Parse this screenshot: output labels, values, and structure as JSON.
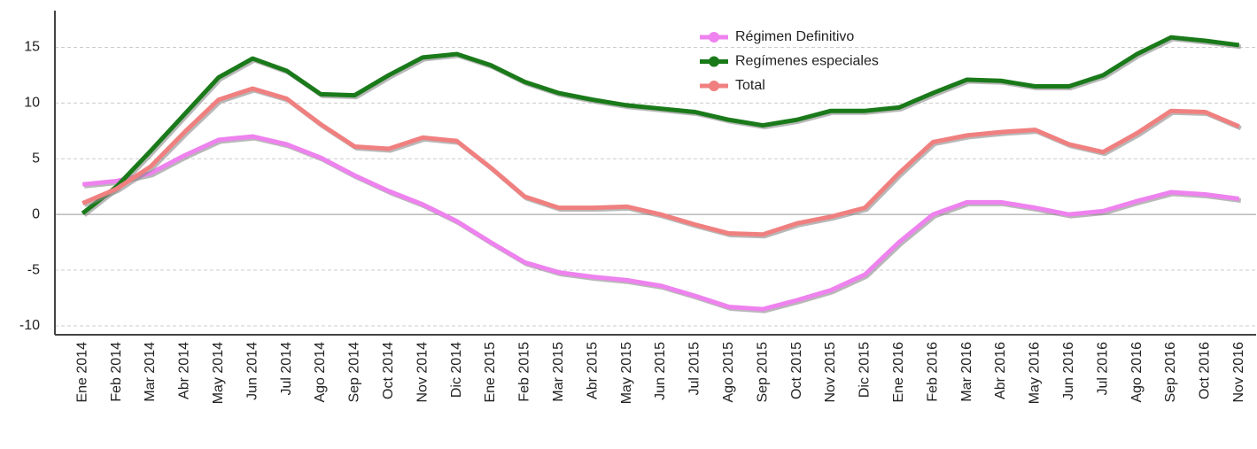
{
  "chart_data": {
    "type": "line",
    "categories": [
      "Ene 2014",
      "Feb 2014",
      "Mar 2014",
      "Abr 2014",
      "May 2014",
      "Jun 2014",
      "Jul 2014",
      "Ago 2014",
      "Sep 2014",
      "Oct 2014",
      "Nov 2014",
      "Dic 2014",
      "Ene 2015",
      "Feb 2015",
      "Mar 2015",
      "Abr 2015",
      "May 2015",
      "Jun 2015",
      "Jul 2015",
      "Ago 2015",
      "Sep 2015",
      "Oct 2015",
      "Nov 2015",
      "Dic 2015",
      "Ene 2016",
      "Feb 2016",
      "Mar 2016",
      "Abr 2016",
      "May 2016",
      "Jun 2016",
      "Jul 2016",
      "Ago 2016",
      "Sep 2016",
      "Oct 2016",
      "Nov 2016"
    ],
    "series": [
      {
        "name": "Régimen Definitivo",
        "color": "#ee82ee",
        "values": [
          2.7,
          3.0,
          3.7,
          5.3,
          6.7,
          7.0,
          6.3,
          5.1,
          3.5,
          2.1,
          0.9,
          -0.6,
          -2.5,
          -4.3,
          -5.2,
          -5.6,
          -5.9,
          -6.4,
          -7.3,
          -8.3,
          -8.5,
          -7.7,
          -6.8,
          -5.4,
          -2.5,
          0.0,
          1.1,
          1.1,
          0.6,
          0.0,
          0.3,
          1.2,
          2.0,
          1.8,
          1.4
        ]
      },
      {
        "name": "Regímenes especiales",
        "color": "#1a7a1a",
        "values": [
          0.1,
          2.5,
          5.7,
          9.0,
          12.3,
          14.0,
          12.9,
          10.8,
          10.7,
          12.5,
          14.1,
          14.4,
          13.4,
          11.9,
          10.9,
          10.3,
          9.8,
          9.5,
          9.2,
          8.5,
          8.0,
          8.5,
          9.3,
          9.3,
          9.6,
          10.9,
          12.1,
          12.0,
          11.5,
          11.5,
          12.5,
          14.4,
          15.9,
          15.6,
          15.2
        ]
      },
      {
        "name": "Total",
        "color": "#f08080",
        "values": [
          1.0,
          2.3,
          4.3,
          7.4,
          10.3,
          11.3,
          10.4,
          8.1,
          6.1,
          5.9,
          6.9,
          6.6,
          4.2,
          1.6,
          0.6,
          0.6,
          0.7,
          0.0,
          -0.9,
          -1.7,
          -1.8,
          -0.8,
          -0.2,
          0.6,
          3.7,
          6.5,
          7.1,
          7.4,
          7.6,
          6.3,
          5.6,
          7.3,
          9.3,
          9.2,
          7.9
        ]
      }
    ],
    "ylim": [
      -10.8,
      18.3
    ],
    "yticks": [
      -10,
      -5,
      0,
      5,
      10,
      15
    ],
    "grid": true,
    "legend": "top-right"
  }
}
